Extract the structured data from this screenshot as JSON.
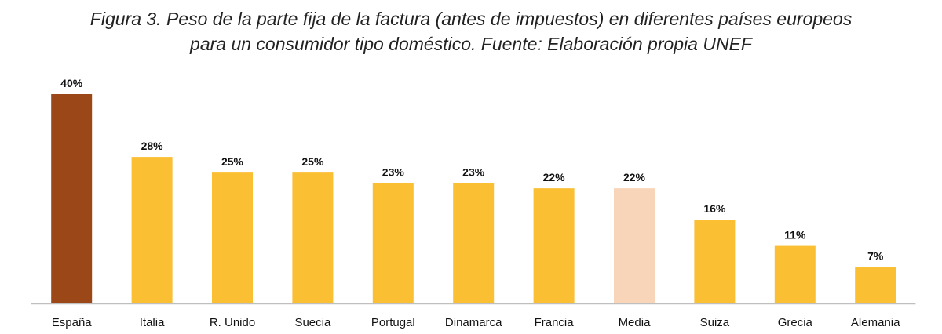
{
  "title_line1": "Figura 3. Peso de la parte fija de la factura (antes de impuestos) en diferentes países europeos",
  "title_line2": "para un consumidor tipo doméstico. Fuente: Elaboración propia UNEF",
  "chart_data": {
    "type": "bar",
    "categories": [
      "España",
      "Italia",
      "R. Unido",
      "Suecia",
      "Portugal",
      "Dinamarca",
      "Francia",
      "Media",
      "Suiza",
      "Grecia",
      "Alemania"
    ],
    "values": [
      40,
      28,
      25,
      25,
      23,
      23,
      22,
      22,
      16,
      11,
      7
    ],
    "data_labels": [
      "40%",
      "28%",
      "25%",
      "25%",
      "23%",
      "23%",
      "22%",
      "22%",
      "16%",
      "11%",
      "7%"
    ],
    "unit": "%",
    "ylim": [
      0,
      40
    ],
    "grid": false,
    "legend": "none",
    "colors": {
      "default": "#FBBF33",
      "España": "#9B4718",
      "Media": "#F8D4B8",
      "axis": "#BFBFBF"
    }
  }
}
